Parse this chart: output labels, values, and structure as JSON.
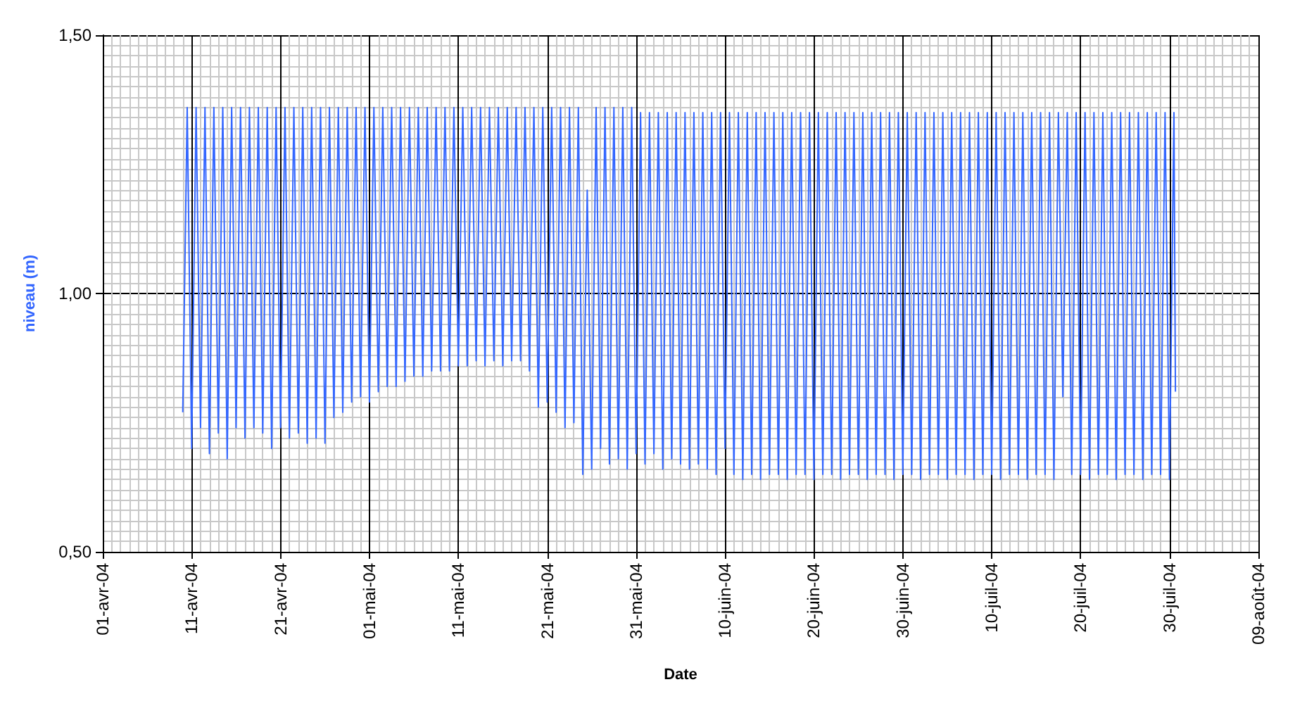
{
  "chart_data": {
    "type": "line",
    "xlabel": "Date",
    "ylabel": "niveau (m)",
    "xlim": [
      "--04-01",
      "--08-09"
    ],
    "ylim": [
      0.5,
      1.5
    ],
    "xticks": [
      {
        "value": "--04-01",
        "label": "01-avr-04"
      },
      {
        "value": "--04-11",
        "label": "11-avr-04"
      },
      {
        "value": "--04-21",
        "label": "21-avr-04"
      },
      {
        "value": "--05-01",
        "label": "01-mai-04"
      },
      {
        "value": "--05-11",
        "label": "11-mai-04"
      },
      {
        "value": "--05-21",
        "label": "21-mai-04"
      },
      {
        "value": "--05-31",
        "label": "31-mai-04"
      },
      {
        "value": "--06-10",
        "label": "10-juin-04"
      },
      {
        "value": "--06-20",
        "label": "20-juin-04"
      },
      {
        "value": "--06-30",
        "label": "30-juin-04"
      },
      {
        "value": "--07-10",
        "label": "10-juil-04"
      },
      {
        "value": "--07-20",
        "label": "20-juil-04"
      },
      {
        "value": "--07-30",
        "label": "30-juil-04"
      },
      {
        "value": "--08-09",
        "label": "09-août-04"
      }
    ],
    "yticks": [
      {
        "value": 0.5,
        "label": "0,50"
      },
      {
        "value": 1.0,
        "label": "1,00"
      },
      {
        "value": 1.5,
        "label": "1,50"
      }
    ],
    "grid": true,
    "marker": "none",
    "line_style": "solid",
    "series": [
      {
        "color": "#3366ff",
        "x": [
          "--04-10T00:00",
          "--04-10T12:00",
          "--04-11T00:00",
          "--04-11T12:00",
          "--04-12T00:00",
          "--04-12T12:00",
          "--04-13T00:00",
          "--04-13T12:00",
          "--04-14T00:00",
          "--04-14T12:00",
          "--04-15T00:00",
          "--04-15T12:00",
          "--04-16T00:00",
          "--04-16T12:00",
          "--04-17T00:00",
          "--04-17T12:00",
          "--04-18T00:00",
          "--04-18T12:00",
          "--04-19T00:00",
          "--04-19T12:00",
          "--04-20T00:00",
          "--04-20T12:00",
          "--04-21T00:00",
          "--04-21T12:00",
          "--04-22T00:00",
          "--04-22T12:00",
          "--04-23T00:00",
          "--04-23T12:00",
          "--04-24T00:00",
          "--04-24T12:00",
          "--04-25T00:00",
          "--04-25T12:00",
          "--04-26T00:00",
          "--04-26T12:00",
          "--04-27T00:00",
          "--04-27T12:00",
          "--04-28T00:00",
          "--04-28T12:00",
          "--04-29T00:00",
          "--04-29T12:00",
          "--04-30T00:00",
          "--04-30T12:00",
          "--05-01T00:00",
          "--05-01T12:00",
          "--05-02T00:00",
          "--05-02T12:00",
          "--05-03T00:00",
          "--05-03T12:00",
          "--05-04T00:00",
          "--05-04T12:00",
          "--05-05T00:00",
          "--05-05T12:00",
          "--05-06T00:00",
          "--05-06T12:00",
          "--05-07T00:00",
          "--05-07T12:00",
          "--05-08T00:00",
          "--05-08T12:00",
          "--05-09T00:00",
          "--05-09T12:00",
          "--05-10T00:00",
          "--05-10T12:00",
          "--05-11T00:00",
          "--05-11T12:00",
          "--05-12T00:00",
          "--05-12T12:00",
          "--05-13T00:00",
          "--05-13T12:00",
          "--05-14T00:00",
          "--05-14T12:00",
          "--05-15T00:00",
          "--05-15T12:00",
          "--05-16T00:00",
          "--05-16T12:00",
          "--05-17T00:00",
          "--05-17T12:00",
          "--05-18T00:00",
          "--05-18T12:00",
          "--05-19T00:00",
          "--05-19T12:00",
          "--05-20T00:00",
          "--05-20T12:00",
          "--05-21T00:00",
          "--05-21T12:00",
          "--05-22T00:00",
          "--05-22T12:00",
          "--05-23T00:00",
          "--05-23T12:00",
          "--05-24T00:00",
          "--05-24T12:00",
          "--05-25T00:00",
          "--05-25T12:00",
          "--05-26T00:00",
          "--05-26T12:00",
          "--05-27T00:00",
          "--05-27T12:00",
          "--05-28T00:00",
          "--05-28T12:00",
          "--05-29T00:00",
          "--05-29T12:00",
          "--05-30T00:00",
          "--05-30T12:00",
          "--05-31T00:00",
          "--05-31T12:00",
          "--06-01T00:00",
          "--06-01T12:00",
          "--06-02T00:00",
          "--06-02T12:00",
          "--06-03T00:00",
          "--06-03T12:00",
          "--06-04T00:00",
          "--06-04T12:00",
          "--06-05T00:00",
          "--06-05T12:00",
          "--06-06T00:00",
          "--06-06T12:00",
          "--06-07T00:00",
          "--06-07T12:00",
          "--06-08T00:00",
          "--06-08T12:00",
          "--06-09T00:00",
          "--06-09T12:00",
          "--06-10T00:00",
          "--06-10T12:00",
          "--06-11T00:00",
          "--06-11T12:00",
          "--06-12T00:00",
          "--06-12T12:00",
          "--06-13T00:00",
          "--06-13T12:00",
          "--06-14T00:00",
          "--06-14T12:00",
          "--06-15T00:00",
          "--06-15T12:00",
          "--06-16T00:00",
          "--06-16T12:00",
          "--06-17T00:00",
          "--06-17T12:00",
          "--06-18T00:00",
          "--06-18T12:00",
          "--06-19T00:00",
          "--06-19T12:00",
          "--06-20T00:00",
          "--06-20T12:00",
          "--06-21T00:00",
          "--06-21T12:00",
          "--06-22T00:00",
          "--06-22T12:00",
          "--06-23T00:00",
          "--06-23T12:00",
          "--06-24T00:00",
          "--06-24T12:00",
          "--06-25T00:00",
          "--06-25T12:00",
          "--06-26T00:00",
          "--06-26T12:00",
          "--06-27T00:00",
          "--06-27T12:00",
          "--06-28T00:00",
          "--06-28T12:00",
          "--06-29T00:00",
          "--06-29T12:00",
          "--06-30T00:00",
          "--06-30T12:00",
          "--07-01T00:00",
          "--07-01T12:00",
          "--07-02T00:00",
          "--07-02T12:00",
          "--07-03T00:00",
          "--07-03T12:00",
          "--07-04T00:00",
          "--07-04T12:00",
          "--07-05T00:00",
          "--07-05T12:00",
          "--07-06T00:00",
          "--07-06T12:00",
          "--07-07T00:00",
          "--07-07T12:00",
          "--07-08T00:00",
          "--07-08T12:00",
          "--07-09T00:00",
          "--07-09T12:00",
          "--07-10T00:00",
          "--07-10T12:00",
          "--07-11T00:00",
          "--07-11T12:00",
          "--07-12T00:00",
          "--07-12T12:00",
          "--07-13T00:00",
          "--07-13T12:00",
          "--07-14T00:00",
          "--07-14T12:00",
          "--07-15T00:00",
          "--07-15T12:00",
          "--07-16T00:00",
          "--07-16T12:00",
          "--07-17T00:00",
          "--07-17T12:00",
          "--07-18T00:00",
          "--07-18T12:00",
          "--07-19T00:00",
          "--07-19T12:00",
          "--07-20T00:00",
          "--07-20T12:00",
          "--07-21T00:00",
          "--07-21T12:00",
          "--07-22T00:00",
          "--07-22T12:00",
          "--07-23T00:00",
          "--07-23T12:00",
          "--07-24T00:00",
          "--07-24T12:00",
          "--07-25T00:00",
          "--07-25T12:00",
          "--07-26T00:00",
          "--07-26T12:00",
          "--07-27T00:00",
          "--07-27T12:00",
          "--07-28T00:00",
          "--07-28T12:00",
          "--07-29T00:00",
          "--07-29T12:00",
          "--07-30T00:00",
          "--07-30T12:00",
          "--07-30T16:00"
        ],
        "values": [
          0.77,
          1.36,
          0.7,
          1.36,
          0.74,
          1.36,
          0.69,
          1.36,
          0.73,
          1.36,
          0.68,
          1.36,
          0.74,
          1.36,
          0.72,
          1.36,
          0.74,
          1.36,
          0.73,
          1.36,
          0.7,
          1.36,
          0.74,
          1.36,
          0.72,
          1.36,
          0.73,
          1.36,
          0.71,
          1.36,
          0.72,
          1.36,
          0.71,
          1.36,
          0.76,
          1.36,
          0.77,
          1.36,
          0.79,
          1.36,
          0.8,
          1.36,
          0.79,
          1.36,
          0.81,
          1.36,
          0.82,
          1.36,
          0.82,
          1.36,
          0.83,
          1.36,
          0.84,
          1.36,
          0.84,
          1.36,
          0.85,
          1.36,
          0.85,
          1.36,
          0.85,
          1.36,
          0.86,
          1.36,
          0.86,
          1.36,
          0.87,
          1.36,
          0.86,
          1.36,
          0.87,
          1.36,
          0.86,
          1.36,
          0.87,
          1.36,
          0.87,
          1.36,
          0.85,
          1.36,
          0.78,
          1.36,
          0.79,
          1.36,
          0.77,
          1.36,
          0.74,
          1.36,
          0.75,
          1.36,
          0.65,
          1.2,
          0.66,
          1.36,
          0.7,
          1.36,
          0.67,
          1.36,
          0.68,
          1.36,
          0.66,
          1.36,
          0.69,
          1.35,
          0.67,
          1.35,
          0.69,
          1.35,
          0.66,
          1.35,
          0.68,
          1.35,
          0.67,
          1.35,
          0.66,
          1.35,
          0.67,
          1.35,
          0.66,
          1.35,
          0.65,
          1.35,
          0.7,
          1.35,
          0.65,
          1.35,
          0.64,
          1.35,
          0.65,
          1.35,
          0.64,
          1.35,
          0.65,
          1.35,
          0.65,
          1.35,
          0.64,
          1.35,
          0.65,
          1.35,
          0.65,
          1.35,
          0.64,
          1.35,
          0.65,
          1.35,
          0.65,
          1.35,
          0.64,
          1.35,
          0.65,
          1.35,
          0.65,
          1.35,
          0.64,
          1.35,
          0.65,
          1.35,
          0.65,
          1.35,
          0.64,
          1.35,
          0.65,
          1.35,
          0.65,
          1.35,
          0.64,
          1.35,
          0.65,
          1.35,
          0.65,
          1.35,
          0.64,
          1.35,
          0.65,
          1.35,
          0.65,
          1.35,
          0.64,
          1.35,
          0.65,
          1.35,
          0.65,
          1.35,
          0.64,
          1.35,
          0.65,
          1.35,
          0.65,
          1.35,
          0.64,
          1.35,
          0.65,
          1.35,
          0.65,
          1.35,
          0.64,
          1.35,
          0.8,
          1.35,
          0.65,
          1.35,
          0.65,
          1.35,
          0.64,
          1.35,
          0.65,
          1.35,
          0.65,
          1.35,
          0.64,
          1.35,
          0.65,
          1.35,
          0.65,
          1.35,
          0.64,
          1.35,
          0.65,
          1.35,
          0.65,
          1.35,
          0.64,
          1.35,
          0.81
        ]
      }
    ]
  }
}
